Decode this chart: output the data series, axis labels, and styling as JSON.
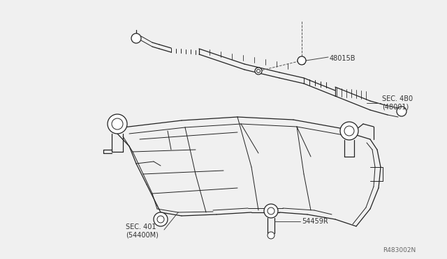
{
  "bg_color": "#f0f0f0",
  "line_color": "#222222",
  "label_color": "#333333",
  "labels": {
    "part1": "48015B",
    "part2": "SEC. 4B0\n(48001)",
    "part3": "SEC. 401\n(54400M)",
    "part4": "54459R",
    "ref": "R483002N"
  },
  "figsize": [
    6.4,
    3.72
  ],
  "dpi": 100
}
